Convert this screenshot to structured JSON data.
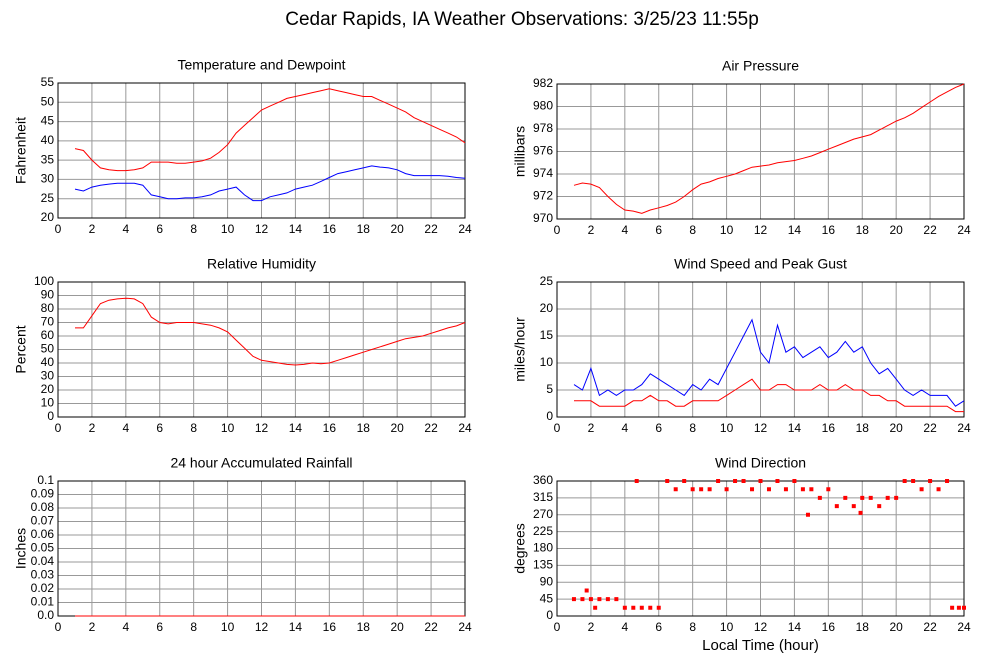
{
  "title": "Cedar Rapids, IA Weather Observations: 3/25/23 11:55p",
  "chart_data": [
    {
      "type": "line",
      "title": "Temperature and Dewpoint",
      "ylabel": "Fahrenheit",
      "xlim": [
        0,
        24
      ],
      "xticks": [
        0,
        2,
        4,
        6,
        8,
        10,
        12,
        14,
        16,
        18,
        20,
        22,
        24
      ],
      "ylim": [
        20,
        55
      ],
      "yticks": [
        20,
        25,
        30,
        35,
        40,
        45,
        50,
        55
      ],
      "grid": true,
      "x": [
        1,
        1.5,
        2,
        2.5,
        3,
        3.5,
        4,
        4.5,
        5,
        5.5,
        6,
        6.5,
        7,
        7.5,
        8,
        8.5,
        9,
        9.5,
        10,
        10.5,
        11,
        11.5,
        12,
        12.5,
        13,
        13.5,
        14,
        14.5,
        15,
        15.5,
        16,
        16.5,
        17,
        17.5,
        18,
        18.5,
        19,
        19.5,
        20,
        20.5,
        21,
        21.5,
        22,
        22.5,
        23,
        23.5,
        24
      ],
      "series": [
        {
          "color": "#ff0000",
          "values": [
            38,
            37.5,
            35,
            33,
            32.5,
            32.3,
            32.3,
            32.5,
            33,
            34.5,
            34.5,
            34.5,
            34.2,
            34.2,
            34.5,
            34.8,
            35.5,
            37,
            39,
            42,
            44,
            46,
            48,
            49,
            50,
            51,
            51.5,
            52,
            52.5,
            53,
            53.5,
            53,
            52.5,
            52,
            51.5,
            51.5,
            50.5,
            49.5,
            48.5,
            47.5,
            46,
            45,
            44,
            43,
            42,
            41,
            39.5
          ]
        },
        {
          "color": "#0000ff",
          "values": [
            27.5,
            27,
            28,
            28.5,
            28.8,
            29,
            29,
            29,
            28.5,
            26,
            25.5,
            25,
            25,
            25.2,
            25.2,
            25.5,
            26,
            27,
            27.5,
            28,
            26,
            24.5,
            24.5,
            25.5,
            26,
            26.5,
            27.5,
            28,
            28.5,
            29.5,
            30.5,
            31.5,
            32,
            32.5,
            33,
            33.5,
            33.2,
            33,
            32.5,
            31.5,
            31,
            31,
            31,
            31,
            30.8,
            30.5,
            30.3
          ]
        }
      ]
    },
    {
      "type": "line",
      "title": "Air Pressure",
      "ylabel": "millibars",
      "xlim": [
        0,
        24
      ],
      "xticks": [
        0,
        2,
        4,
        6,
        8,
        10,
        12,
        14,
        16,
        18,
        20,
        22,
        24
      ],
      "ylim": [
        970,
        982
      ],
      "yticks": [
        970,
        972,
        974,
        976,
        978,
        980,
        982
      ],
      "grid": true,
      "x": [
        1,
        1.5,
        2,
        2.5,
        3,
        3.5,
        4,
        4.5,
        5,
        5.5,
        6,
        6.5,
        7,
        7.5,
        8,
        8.5,
        9,
        9.5,
        10,
        10.5,
        11,
        11.5,
        12,
        12.5,
        13,
        13.5,
        14,
        14.5,
        15,
        15.5,
        16,
        16.5,
        17,
        17.5,
        18,
        18.5,
        19,
        19.5,
        20,
        20.5,
        21,
        21.5,
        22,
        22.5,
        23,
        23.5,
        24
      ],
      "series": [
        {
          "color": "#ff0000",
          "values": [
            973,
            973.2,
            973.1,
            972.8,
            972,
            971.3,
            970.8,
            970.7,
            970.5,
            970.8,
            971,
            971.2,
            971.5,
            972,
            972.6,
            973.1,
            973.3,
            973.6,
            973.8,
            974,
            974.3,
            974.6,
            974.7,
            974.8,
            975,
            975.1,
            975.2,
            975.4,
            975.6,
            975.9,
            976.2,
            976.5,
            976.8,
            977.1,
            977.3,
            977.5,
            977.9,
            978.3,
            978.7,
            979,
            979.4,
            979.9,
            980.4,
            980.9,
            981.3,
            981.7,
            982
          ]
        }
      ]
    },
    {
      "type": "line",
      "title": "Relative Humidity",
      "ylabel": "Percent",
      "xlim": [
        0,
        24
      ],
      "xticks": [
        0,
        2,
        4,
        6,
        8,
        10,
        12,
        14,
        16,
        18,
        20,
        22,
        24
      ],
      "ylim": [
        0,
        100
      ],
      "yticks": [
        0,
        10,
        20,
        30,
        40,
        50,
        60,
        70,
        80,
        90,
        100
      ],
      "grid": true,
      "x": [
        1,
        1.5,
        2,
        2.5,
        3,
        3.5,
        4,
        4.5,
        5,
        5.5,
        6,
        6.5,
        7,
        7.5,
        8,
        8.5,
        9,
        9.5,
        10,
        10.5,
        11,
        11.5,
        12,
        12.5,
        13,
        13.5,
        14,
        14.5,
        15,
        15.5,
        16,
        16.5,
        17,
        17.5,
        18,
        18.5,
        19,
        19.5,
        20,
        20.5,
        21,
        21.5,
        22,
        22.5,
        23,
        23.5,
        24
      ],
      "series": [
        {
          "color": "#ff0000",
          "values": [
            66,
            66,
            75,
            84,
            86.5,
            87.5,
            88,
            87.5,
            84,
            74,
            70,
            69,
            70,
            70,
            70,
            69,
            68,
            66,
            63,
            57,
            51,
            45,
            42,
            41,
            40,
            39,
            38.5,
            39,
            40,
            39.5,
            40,
            42,
            44,
            46,
            48,
            50,
            52,
            54,
            56,
            58,
            59,
            60,
            62,
            64,
            66,
            67.5,
            70
          ]
        }
      ]
    },
    {
      "type": "line",
      "title": "Wind Speed and Peak Gust",
      "ylabel": "miles/hour",
      "xlim": [
        0,
        24
      ],
      "xticks": [
        0,
        2,
        4,
        6,
        8,
        10,
        12,
        14,
        16,
        18,
        20,
        22,
        24
      ],
      "ylim": [
        0,
        25
      ],
      "yticks": [
        0,
        5,
        10,
        15,
        20,
        25
      ],
      "grid": true,
      "x": [
        1,
        1.5,
        2,
        2.5,
        3,
        3.5,
        4,
        4.5,
        5,
        5.5,
        6,
        6.5,
        7,
        7.5,
        8,
        8.5,
        9,
        9.5,
        10,
        10.5,
        11,
        11.5,
        12,
        12.5,
        13,
        13.5,
        14,
        14.5,
        15,
        15.5,
        16,
        16.5,
        17,
        17.5,
        18,
        18.5,
        19,
        19.5,
        20,
        20.5,
        21,
        21.5,
        22,
        22.5,
        23,
        23.5,
        24
      ],
      "series": [
        {
          "color": "#0000ff",
          "values": [
            6,
            5,
            9,
            4,
            5,
            4,
            5,
            5,
            6,
            8,
            7,
            6,
            5,
            4,
            6,
            5,
            7,
            6,
            9,
            12,
            15,
            18,
            12,
            10,
            17,
            12,
            13,
            11,
            12,
            13,
            11,
            12,
            14,
            12,
            13,
            10,
            8,
            9,
            7,
            5,
            4,
            5,
            4,
            4,
            4,
            2,
            3
          ]
        },
        {
          "color": "#ff0000",
          "values": [
            3,
            3,
            3,
            2,
            2,
            2,
            2,
            3,
            3,
            4,
            3,
            3,
            2,
            2,
            3,
            3,
            3,
            3,
            4,
            5,
            6,
            7,
            5,
            5,
            6,
            6,
            5,
            5,
            5,
            6,
            5,
            5,
            6,
            5,
            5,
            4,
            4,
            3,
            3,
            2,
            2,
            2,
            2,
            2,
            2,
            1,
            1
          ]
        }
      ]
    },
    {
      "type": "line",
      "title": "24 hour Accumulated Rainfall",
      "ylabel": "Inches",
      "xlim": [
        0,
        24
      ],
      "xticks": [
        0,
        2,
        4,
        6,
        8,
        10,
        12,
        14,
        16,
        18,
        20,
        22,
        24
      ],
      "ylim": [
        0,
        0.1
      ],
      "yticks": [
        {
          "value": 0,
          "label": "0.0"
        },
        0.01,
        0.02,
        0.03,
        0.04,
        0.05,
        0.06,
        0.07,
        0.08,
        0.09,
        0.1
      ],
      "grid": true,
      "x": [
        1,
        24
      ],
      "series": [
        {
          "color": "#ff0000",
          "values": [
            0,
            0
          ]
        }
      ]
    },
    {
      "type": "scatter",
      "title": "Wind Direction",
      "ylabel": "degrees",
      "xlabel": "Local Time (hour)",
      "xlim": [
        0,
        24
      ],
      "xticks": [
        0,
        2,
        4,
        6,
        8,
        10,
        12,
        14,
        16,
        18,
        20,
        22,
        24
      ],
      "ylim": [
        0,
        360
      ],
      "yticks": [
        0,
        45,
        90,
        135,
        180,
        225,
        270,
        315,
        360
      ],
      "grid": true,
      "color": "#ff0000",
      "x": [
        1,
        1.5,
        1.75,
        2,
        2.25,
        2.5,
        3,
        3.5,
        4,
        4.5,
        5,
        5.5,
        6,
        4.7,
        6.5,
        7,
        7.5,
        8,
        8.5,
        9,
        9.5,
        10,
        10.5,
        11,
        11.5,
        12,
        12.5,
        13,
        13.5,
        14,
        14.5,
        14.8,
        15,
        15.5,
        16,
        16.5,
        17,
        17.5,
        17.9,
        18,
        18.5,
        19,
        19.5,
        20,
        20.5,
        21,
        21.5,
        22,
        22.5,
        23,
        23.3,
        23.7,
        24
      ],
      "values": [
        45,
        45,
        68,
        45,
        22,
        45,
        45,
        45,
        22,
        22,
        22,
        22,
        22,
        360,
        360,
        338,
        360,
        338,
        338,
        338,
        360,
        338,
        360,
        360,
        338,
        360,
        338,
        360,
        338,
        360,
        338,
        270,
        338,
        315,
        338,
        293,
        315,
        293,
        275,
        315,
        315,
        293,
        315,
        315,
        360,
        360,
        338,
        360,
        338,
        360,
        22,
        22,
        22
      ]
    }
  ]
}
